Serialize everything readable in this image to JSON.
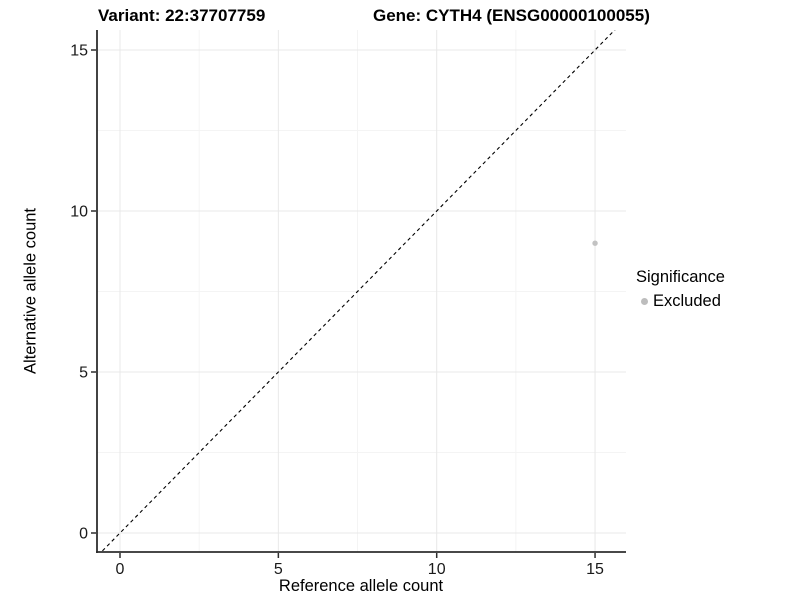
{
  "header": {
    "title_left": "Variant: 22:37707759",
    "title_right": "Gene: CYTH4 (ENSG00000100055)"
  },
  "axes": {
    "x": {
      "label": "Reference allele count"
    },
    "y": {
      "label": "Alternative allele count"
    }
  },
  "legend": {
    "title": "Significance",
    "entries": [
      {
        "label": "Excluded",
        "color": "#bdbdbd"
      }
    ]
  },
  "chart_data": {
    "type": "scatter",
    "title": "Variant: 22:37707759 | Gene: CYTH4 (ENSG00000100055)",
    "xlabel": "Reference allele count",
    "ylabel": "Alternative allele count",
    "xlim": [
      -0.73,
      15.98
    ],
    "ylim": [
      -0.59,
      15.62
    ],
    "xticks": [
      0,
      5,
      10,
      15
    ],
    "yticks": [
      0,
      5,
      10,
      15
    ],
    "grid": {
      "major": true,
      "minor": true,
      "major_color": "#e8e8e8",
      "minor_color": "#f4f4f4"
    },
    "series": [
      {
        "name": "Excluded",
        "color": "#c2c2c2",
        "points": [
          {
            "x": 15,
            "y": 9
          }
        ]
      }
    ],
    "reference_line": {
      "kind": "identity",
      "equation": "y = x",
      "linestyle": "dashed",
      "color": "#000000"
    },
    "legend": {
      "title": "Significance",
      "position": "right",
      "entries": [
        "Excluded"
      ]
    },
    "axis_color": "#2e2e2e"
  }
}
